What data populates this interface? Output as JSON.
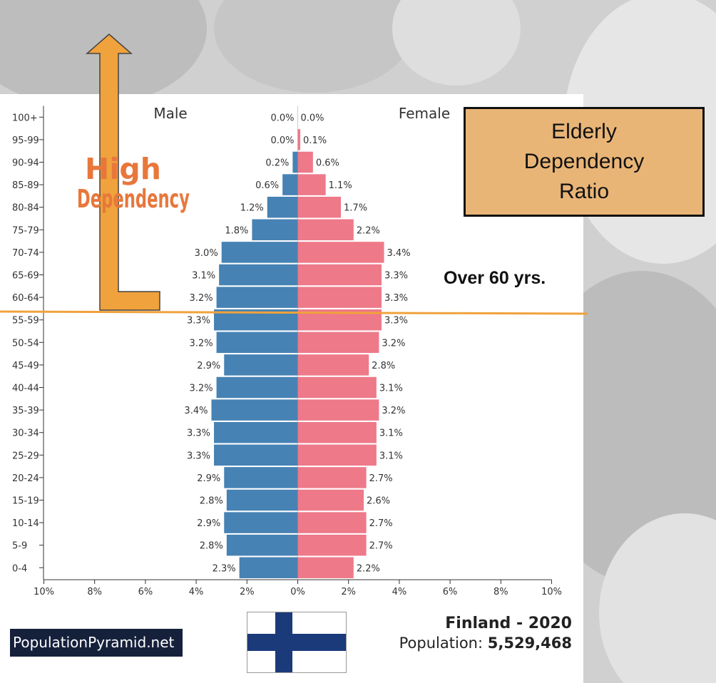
{
  "chart_data": {
    "type": "bar",
    "subtype": "population-pyramid",
    "categories": [
      "100+",
      "95-99",
      "90-94",
      "85-89",
      "80-84",
      "75-79",
      "70-74",
      "65-69",
      "60-64",
      "55-59",
      "50-54",
      "45-49",
      "40-44",
      "35-39",
      "30-34",
      "25-29",
      "20-24",
      "15-19",
      "10-14",
      "5-9",
      "0-4"
    ],
    "series": [
      {
        "name": "Male",
        "color": "#4682b4",
        "values": [
          0.0,
          0.0,
          0.2,
          0.6,
          1.2,
          1.8,
          3.0,
          3.1,
          3.2,
          3.3,
          3.2,
          2.9,
          3.2,
          3.4,
          3.3,
          3.3,
          2.9,
          2.8,
          2.9,
          2.8,
          2.3
        ]
      },
      {
        "name": "Female",
        "color": "#ee7989",
        "values": [
          0.0,
          0.1,
          0.6,
          1.1,
          1.7,
          2.2,
          3.4,
          3.3,
          3.3,
          3.3,
          3.2,
          2.8,
          3.1,
          3.2,
          3.1,
          3.1,
          2.7,
          2.6,
          2.7,
          2.7,
          2.2
        ]
      }
    ],
    "value_suffix": "%",
    "xlim": [
      -10,
      10
    ],
    "x_ticks": [
      -10,
      -8,
      -6,
      -4,
      -2,
      0,
      2,
      4,
      6,
      8,
      10
    ],
    "x_tick_labels": [
      "10%",
      "8%",
      "6%",
      "4%",
      "2%",
      "0%",
      "2%",
      "4%",
      "6%",
      "8%",
      "10%"
    ],
    "grid": false
  },
  "footer": {
    "logo": "PopulationPyramid.net",
    "title": "Finland - 2020",
    "population_label": "Population:",
    "population_value": "5,529,468"
  },
  "annotations": {
    "box_text": "Elderly\nDependency\nRatio",
    "threshold_label": "Over 60 yrs.",
    "arrow_text_line1": "High",
    "arrow_text_line2": "Dependency"
  },
  "colors": {
    "male": "#4682b4",
    "female": "#ee7989",
    "accent": "#f0a23c",
    "note_box": "#e9b577",
    "logo_bg": "#15203b",
    "flag_blue": "#1b3a7a"
  }
}
